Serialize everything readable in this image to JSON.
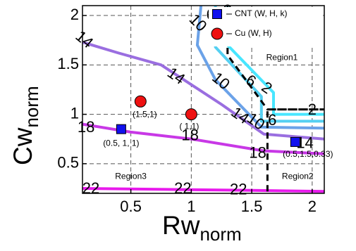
{
  "chart_data": {
    "type": "line",
    "title": "",
    "xlabel": "Rw",
    "xlabel_sub": "norm",
    "ylabel": "Cw",
    "ylabel_sub": "norm",
    "xlim": [
      0.1,
      2.1
    ],
    "ylim": [
      0.2,
      2.1
    ],
    "xticks": [
      0.5,
      1,
      1.5,
      2
    ],
    "xtick_labels": [
      "0.5",
      "1",
      "1.5",
      "2"
    ],
    "yticks": [
      0.5,
      1,
      1.5,
      2
    ],
    "ytick_labels": [
      "0.5",
      "1",
      "1.5",
      "2"
    ],
    "grid": true,
    "legend_position": "top-right",
    "legend": [
      {
        "label": "CNT (W, H, k)",
        "marker": "square",
        "color": "#1010ee"
      },
      {
        "label": "Cu (W, H)",
        "marker": "circle",
        "color": "#ee1111"
      }
    ],
    "contours": [
      {
        "level": "2",
        "color": "#48e6ff",
        "points": [
          [
            1.3,
            2.1
          ],
          [
            1.3,
            1.7
          ],
          [
            1.68,
            1.22
          ],
          [
            1.68,
            1.0
          ],
          [
            2.1,
            1.0
          ]
        ]
      },
      {
        "level": "6",
        "color": "#55d0f2",
        "points": [
          [
            1.2,
            2.1
          ],
          [
            1.2,
            1.68
          ],
          [
            1.58,
            1.18
          ],
          [
            1.58,
            0.93
          ],
          [
            2.1,
            0.93
          ]
        ]
      },
      {
        "level": "10",
        "color": "#6ba2e8",
        "points": [
          [
            1.08,
            2.1
          ],
          [
            1.05,
            1.7
          ],
          [
            1.2,
            1.35
          ],
          [
            1.58,
            0.87
          ],
          [
            2.1,
            0.86
          ]
        ]
      },
      {
        "level": "14",
        "color": "#9a6ee0",
        "points": [
          [
            0.1,
            1.73
          ],
          [
            0.4,
            1.62
          ],
          [
            0.75,
            1.5
          ],
          [
            1.0,
            1.3
          ],
          [
            1.25,
            1.1
          ],
          [
            1.6,
            0.8
          ],
          [
            2.1,
            0.75
          ]
        ]
      },
      {
        "level": "18",
        "color": "#c838e6",
        "points": [
          [
            0.1,
            0.9
          ],
          [
            0.5,
            0.82
          ],
          [
            1.0,
            0.75
          ],
          [
            1.6,
            0.63
          ],
          [
            2.1,
            0.6
          ]
        ]
      },
      {
        "level": "22",
        "color": "#e81aec",
        "points": [
          [
            0.1,
            0.25
          ],
          [
            0.8,
            0.24
          ],
          [
            1.5,
            0.23
          ],
          [
            2.1,
            0.22
          ]
        ]
      }
    ],
    "contour_labels": [
      {
        "text": "2",
        "x": 1.3,
        "y": 2.04,
        "rot": 0
      },
      {
        "text": "6",
        "x": 1.16,
        "y": 2.0,
        "rot": 0
      },
      {
        "text": "10",
        "x": 1.05,
        "y": 1.92,
        "rot": 45
      },
      {
        "text": "14",
        "x": 0.11,
        "y": 1.75,
        "rot": 40
      },
      {
        "text": "14",
        "x": 0.87,
        "y": 1.38,
        "rot": 35
      },
      {
        "text": "10",
        "x": 1.24,
        "y": 1.33,
        "rot": 40
      },
      {
        "text": "6",
        "x": 1.49,
        "y": 1.33,
        "rot": 30
      },
      {
        "text": "2",
        "x": 1.62,
        "y": 1.26,
        "rot": 35
      },
      {
        "text": "14",
        "x": 1.4,
        "y": 0.98,
        "rot": 35
      },
      {
        "text": "10",
        "x": 1.53,
        "y": 0.92,
        "rot": 35
      },
      {
        "text": "6",
        "x": 1.67,
        "y": 0.93,
        "rot": 0
      },
      {
        "text": "2",
        "x": 2.0,
        "y": 1.04,
        "rot": 0
      },
      {
        "text": "18",
        "x": 0.13,
        "y": 0.86,
        "rot": 0
      },
      {
        "text": "18",
        "x": 0.99,
        "y": 0.78,
        "rot": 0
      },
      {
        "text": "18",
        "x": 1.55,
        "y": 0.6,
        "rot": 0
      },
      {
        "text": "14",
        "x": 1.94,
        "y": 0.7,
        "rot": 0
      },
      {
        "text": "22",
        "x": 0.17,
        "y": 0.24,
        "rot": 0
      },
      {
        "text": "22",
        "x": 0.93,
        "y": 0.24,
        "rot": 0
      },
      {
        "text": "22",
        "x": 1.39,
        "y": 0.23,
        "rot": 0
      }
    ],
    "boundary": {
      "color": "#000000",
      "points": [
        [
          1.3,
          2.1
        ],
        [
          1.3,
          1.6
        ],
        [
          1.63,
          1.05
        ],
        [
          2.1,
          1.05
        ],
        [
          1.63,
          1.05
        ],
        [
          1.63,
          0.2
        ]
      ]
    },
    "cnt_points": [
      {
        "x": 0.42,
        "y": 0.85,
        "label": "(0.5,  1,   1)"
      },
      {
        "x": 1.86,
        "y": 0.72,
        "label": "(0.5,1.5,0.33)"
      }
    ],
    "cu_points": [
      {
        "x": 0.58,
        "y": 1.13,
        "label": "(1.5,1)"
      },
      {
        "x": 1.0,
        "y": 1.0,
        "label": "( 1,1)"
      }
    ],
    "regions": [
      {
        "label": "Region1",
        "x": 1.75,
        "y": 1.57
      },
      {
        "label": "Region2",
        "x": 1.88,
        "y": 0.37
      },
      {
        "label": "Region3",
        "x": 0.5,
        "y": 0.37
      }
    ]
  }
}
